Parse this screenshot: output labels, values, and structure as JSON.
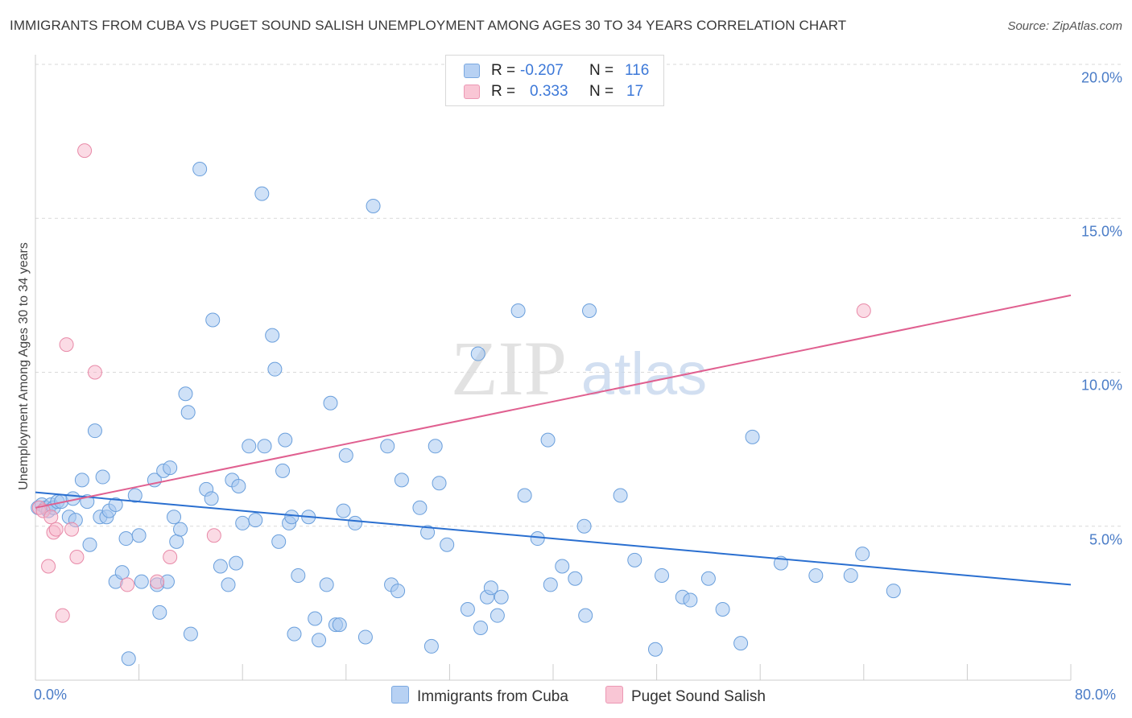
{
  "header": {
    "title": "IMMIGRANTS FROM CUBA VS PUGET SOUND SALISH UNEMPLOYMENT AMONG AGES 30 TO 34 YEARS CORRELATION CHART",
    "source": "Source: ZipAtlas.com"
  },
  "legend": {
    "rows": [
      {
        "r_label": "R =",
        "r_value": "-0.207",
        "n_label": "N =",
        "n_value": "116"
      },
      {
        "r_label": "R =",
        "r_value": "0.333",
        "n_label": "N =",
        "n_value": "17"
      }
    ]
  },
  "bottom_legend": {
    "series1": "Immigrants from Cuba",
    "series2": "Puget Sound Salish"
  },
  "watermark": {
    "zip": "ZIP",
    "atlas": "atlas"
  },
  "colors": {
    "blue_fill": "#a8c8f0",
    "blue_stroke": "#6a9fdc",
    "blue_line": "#2a6fd0",
    "pink_fill": "#f7b8cb",
    "pink_stroke": "#e88aa8",
    "pink_line": "#e06090",
    "axis_text": "#4a7cc7",
    "grid": "#d9d9d9"
  },
  "chart_data": {
    "type": "scatter",
    "title": "IMMIGRANTS FROM CUBA VS PUGET SOUND SALISH UNEMPLOYMENT AMONG AGES 30 TO 34 YEARS CORRELATION CHART",
    "xlabel": "",
    "ylabel": "Unemployment Among Ages 30 to 34 years",
    "xlim": [
      0,
      80
    ],
    "ylim": [
      0,
      20
    ],
    "x_tick_labels": [
      "0.0%",
      "80.0%"
    ],
    "y_ticks": [
      5,
      10,
      15,
      20
    ],
    "y_tick_labels": [
      "5.0%",
      "10.0%",
      "15.0%",
      "20.0%"
    ],
    "series": [
      {
        "name": "Immigrants from Cuba",
        "R": -0.207,
        "N": 116,
        "trend": {
          "x0": 0,
          "y0": 6.1,
          "x1": 80,
          "y1": 3.1
        },
        "points": [
          [
            0.2,
            5.6
          ],
          [
            0.5,
            5.7
          ],
          [
            0.8,
            5.6
          ],
          [
            1.0,
            5.5
          ],
          [
            1.2,
            5.7
          ],
          [
            1.4,
            5.6
          ],
          [
            1.7,
            5.8
          ],
          [
            2.0,
            5.8
          ],
          [
            2.6,
            5.3
          ],
          [
            2.9,
            5.9
          ],
          [
            3.1,
            5.2
          ],
          [
            3.6,
            6.5
          ],
          [
            4.0,
            5.8
          ],
          [
            4.2,
            4.4
          ],
          [
            4.6,
            8.1
          ],
          [
            5.0,
            5.3
          ],
          [
            5.2,
            6.6
          ],
          [
            5.5,
            5.3
          ],
          [
            5.7,
            5.5
          ],
          [
            6.2,
            5.7
          ],
          [
            6.2,
            3.2
          ],
          [
            6.7,
            3.5
          ],
          [
            7.0,
            4.6
          ],
          [
            7.2,
            0.7
          ],
          [
            7.7,
            6.0
          ],
          [
            8.0,
            4.7
          ],
          [
            8.2,
            3.2
          ],
          [
            9.2,
            6.5
          ],
          [
            9.4,
            3.1
          ],
          [
            9.6,
            2.2
          ],
          [
            9.9,
            6.8
          ],
          [
            10.2,
            3.2
          ],
          [
            10.4,
            6.9
          ],
          [
            10.7,
            5.3
          ],
          [
            10.9,
            4.5
          ],
          [
            11.2,
            4.9
          ],
          [
            11.6,
            9.3
          ],
          [
            11.8,
            8.7
          ],
          [
            12.0,
            1.5
          ],
          [
            12.7,
            16.6
          ],
          [
            13.2,
            6.2
          ],
          [
            13.6,
            5.9
          ],
          [
            13.7,
            11.7
          ],
          [
            14.3,
            3.7
          ],
          [
            14.9,
            3.1
          ],
          [
            15.2,
            6.5
          ],
          [
            15.5,
            3.8
          ],
          [
            15.7,
            6.3
          ],
          [
            16.0,
            5.1
          ],
          [
            16.5,
            7.6
          ],
          [
            17.0,
            5.2
          ],
          [
            17.5,
            15.8
          ],
          [
            17.7,
            7.6
          ],
          [
            18.3,
            11.2
          ],
          [
            18.5,
            10.1
          ],
          [
            18.8,
            4.5
          ],
          [
            19.1,
            6.8
          ],
          [
            19.3,
            7.8
          ],
          [
            19.6,
            5.1
          ],
          [
            19.8,
            5.3
          ],
          [
            20.0,
            1.5
          ],
          [
            20.3,
            3.4
          ],
          [
            21.1,
            5.3
          ],
          [
            21.6,
            2.0
          ],
          [
            21.9,
            1.3
          ],
          [
            22.5,
            3.1
          ],
          [
            22.8,
            9.0
          ],
          [
            23.2,
            1.8
          ],
          [
            23.5,
            1.8
          ],
          [
            23.8,
            5.5
          ],
          [
            24.0,
            7.3
          ],
          [
            24.7,
            5.1
          ],
          [
            25.5,
            1.4
          ],
          [
            26.1,
            15.4
          ],
          [
            27.2,
            7.6
          ],
          [
            27.5,
            3.1
          ],
          [
            28.0,
            2.9
          ],
          [
            28.3,
            6.5
          ],
          [
            29.7,
            5.6
          ],
          [
            30.3,
            4.8
          ],
          [
            30.6,
            1.1
          ],
          [
            30.9,
            7.6
          ],
          [
            31.2,
            6.4
          ],
          [
            31.8,
            4.4
          ],
          [
            33.4,
            2.3
          ],
          [
            34.2,
            10.6
          ],
          [
            34.4,
            1.7
          ],
          [
            34.9,
            2.7
          ],
          [
            35.2,
            3.0
          ],
          [
            35.7,
            2.1
          ],
          [
            36.0,
            2.7
          ],
          [
            37.3,
            12.0
          ],
          [
            37.8,
            6.0
          ],
          [
            38.8,
            4.6
          ],
          [
            39.6,
            7.8
          ],
          [
            39.8,
            3.1
          ],
          [
            40.7,
            3.7
          ],
          [
            41.7,
            3.3
          ],
          [
            42.4,
            5.0
          ],
          [
            42.5,
            2.1
          ],
          [
            42.8,
            12.0
          ],
          [
            45.2,
            6.0
          ],
          [
            46.3,
            3.9
          ],
          [
            47.9,
            1.0
          ],
          [
            48.4,
            3.4
          ],
          [
            50.0,
            2.7
          ],
          [
            50.6,
            2.6
          ],
          [
            52.0,
            3.3
          ],
          [
            53.1,
            2.3
          ],
          [
            54.5,
            1.2
          ],
          [
            55.4,
            7.9
          ],
          [
            57.6,
            3.8
          ],
          [
            60.3,
            3.4
          ],
          [
            63.0,
            3.4
          ],
          [
            63.9,
            4.1
          ],
          [
            66.3,
            2.9
          ]
        ]
      },
      {
        "name": "Puget Sound Salish",
        "R": 0.333,
        "N": 17,
        "trend": {
          "x0": 0,
          "y0": 5.6,
          "x1": 80,
          "y1": 12.5
        },
        "points": [
          [
            0.3,
            5.6
          ],
          [
            0.6,
            5.5
          ],
          [
            1.0,
            3.7
          ],
          [
            1.2,
            5.3
          ],
          [
            1.4,
            4.8
          ],
          [
            1.6,
            4.9
          ],
          [
            2.1,
            2.1
          ],
          [
            2.4,
            10.9
          ],
          [
            2.8,
            4.9
          ],
          [
            3.2,
            4.0
          ],
          [
            3.8,
            17.2
          ],
          [
            4.6,
            10.0
          ],
          [
            7.1,
            3.1
          ],
          [
            9.4,
            3.2
          ],
          [
            10.4,
            4.0
          ],
          [
            13.8,
            4.7
          ],
          [
            64.0,
            12.0
          ]
        ]
      }
    ]
  }
}
